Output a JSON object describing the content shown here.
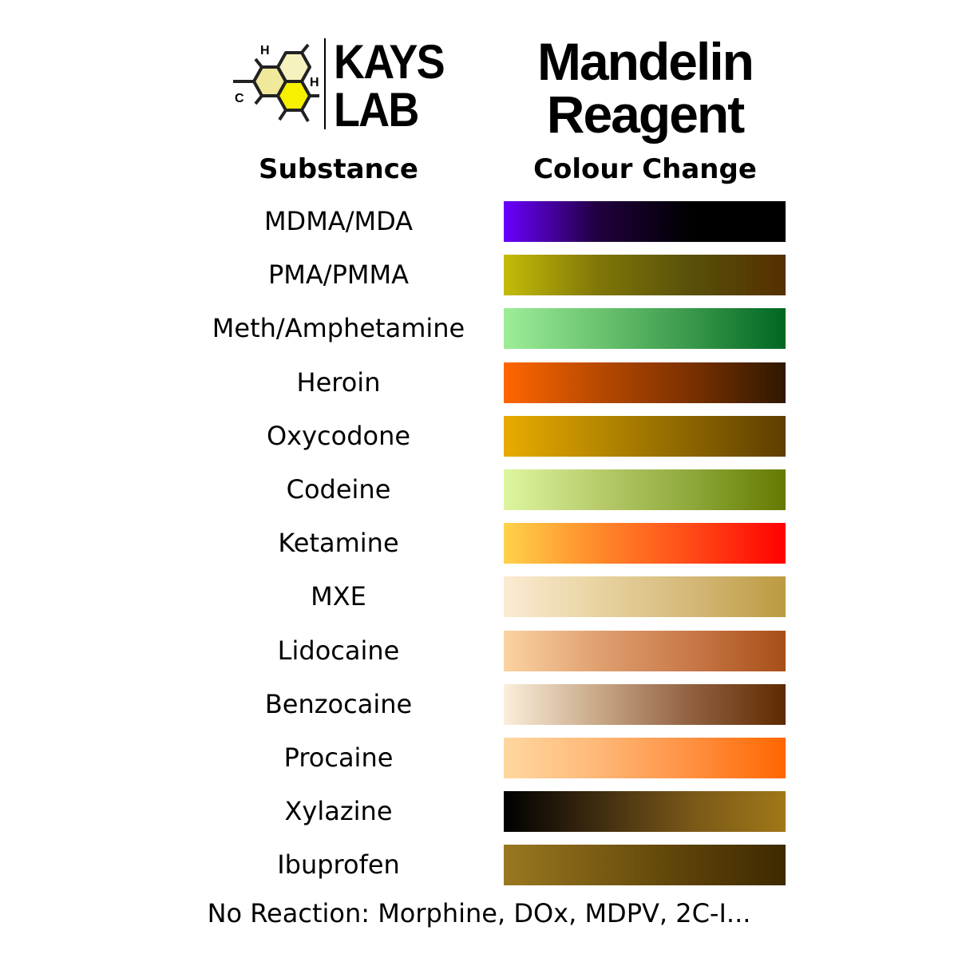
{
  "brand": {
    "line1": "KAYS",
    "line2": "LAB",
    "logo_letters": [
      "H",
      "C",
      "H"
    ]
  },
  "title": {
    "line1": "Mandelin",
    "line2": "Reagent"
  },
  "headers": {
    "substance": "Substance",
    "colour_change": "Colour Change"
  },
  "rows": [
    {
      "substance": "MDMA/MDA",
      "colors": [
        "#6a00ff",
        "#20003e",
        "#000000",
        "#000000"
      ]
    },
    {
      "substance": "PMA/PMMA",
      "colors": [
        "#c4bc08",
        "#807608",
        "#58500a",
        "#552f00"
      ]
    },
    {
      "substance": "Meth/Amphetamine",
      "colors": [
        "#9ded98",
        "#6cc470",
        "#38984a",
        "#006622"
      ]
    },
    {
      "substance": "Heroin",
      "colors": [
        "#ff6600",
        "#b84a00",
        "#7a3000",
        "#2e1800"
      ]
    },
    {
      "substance": "Oxycodone",
      "colors": [
        "#e8ab00",
        "#b88800",
        "#8a6400",
        "#5e3d00"
      ]
    },
    {
      "substance": "Codeine",
      "colors": [
        "#def6a0",
        "#b8cc6c",
        "#8ea83a",
        "#637a00"
      ]
    },
    {
      "substance": "Ketamine",
      "colors": [
        "#ffd24a",
        "#ff8a2a",
        "#ff4a18",
        "#ff0000"
      ]
    },
    {
      "substance": "MXE",
      "colors": [
        "#fbebd3",
        "#e8d3a0",
        "#d4b878",
        "#bc9a40"
      ]
    },
    {
      "substance": "Lidocaine",
      "colors": [
        "#fbd3a2",
        "#e0a070",
        "#c87848",
        "#a84e18"
      ]
    },
    {
      "substance": "Benzocaine",
      "colors": [
        "#fbeedb",
        "#c8a888",
        "#906040",
        "#5e2a00"
      ]
    },
    {
      "substance": "Procaine",
      "colors": [
        "#ffd7a0",
        "#ffb878",
        "#ff9040",
        "#ff6600"
      ]
    },
    {
      "substance": "Xylazine",
      "colors": [
        "#000000",
        "#3e2c10",
        "#7a5818",
        "#a07818"
      ]
    },
    {
      "substance": "Ibuprofen",
      "colors": [
        "#9a7820",
        "#7a5c14",
        "#5a4008",
        "#3e2a00"
      ]
    }
  ],
  "footer": "No Reaction: Morphine, DOx, MDPV, 2C-I..."
}
